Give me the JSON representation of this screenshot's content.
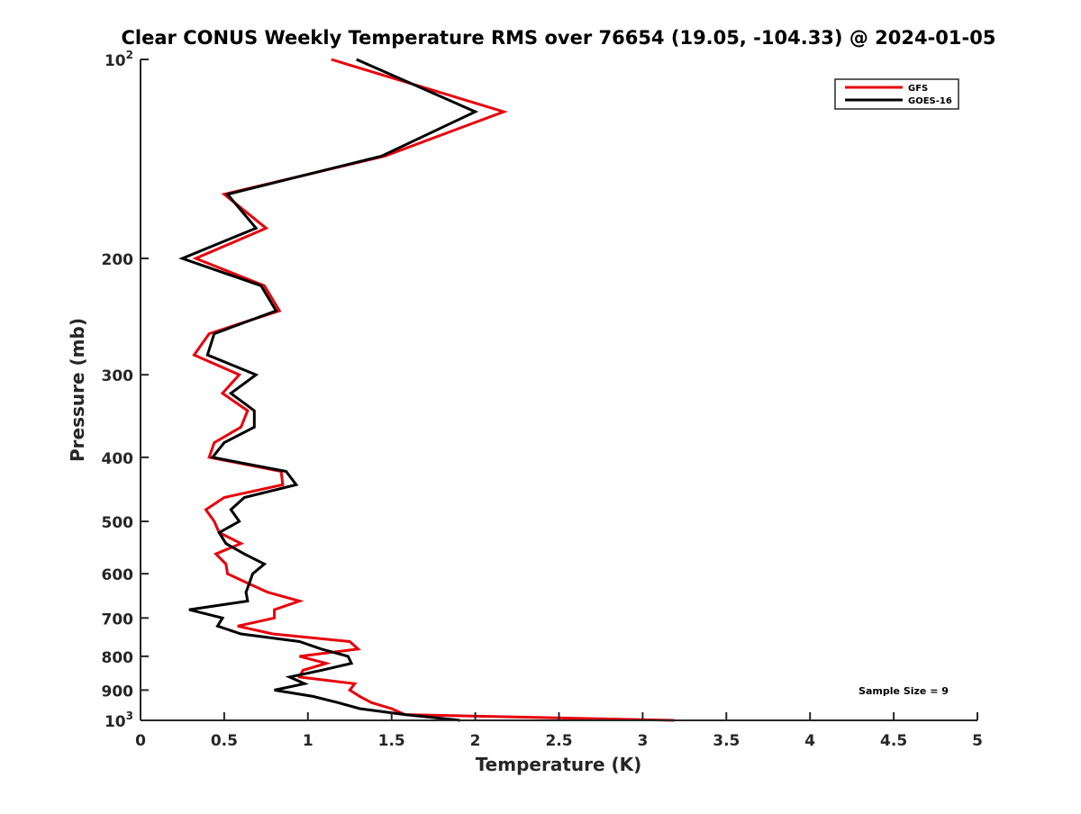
{
  "chart_data": {
    "type": "line",
    "title": "Clear CONUS Weekly Temperature RMS over 76654 (19.05, -104.33) @ 2024-01-05",
    "xlabel": "Temperature (K)",
    "ylabel": "Pressure (mb)",
    "xlim": [
      0,
      5
    ],
    "ylim": [
      100,
      1000
    ],
    "yscale": "log",
    "y_reversed": true,
    "grid": false,
    "x_ticks": [
      "0",
      "0.5",
      "1",
      "1.5",
      "2",
      "2.5",
      "3",
      "3.5",
      "4",
      "4.5",
      "5"
    ],
    "x_tick_values": [
      0,
      0.5,
      1,
      1.5,
      2,
      2.5,
      3,
      3.5,
      4,
      4.5,
      5
    ],
    "y_ticks": [
      {
        "value": 100,
        "label": "10",
        "sup": "2"
      },
      {
        "value": 200,
        "label": "200"
      },
      {
        "value": 300,
        "label": "300"
      },
      {
        "value": 400,
        "label": "400"
      },
      {
        "value": 500,
        "label": "500"
      },
      {
        "value": 600,
        "label": "600"
      },
      {
        "value": 700,
        "label": "700"
      },
      {
        "value": 800,
        "label": "800"
      },
      {
        "value": 900,
        "label": "900"
      },
      {
        "value": 1000,
        "label": "10",
        "sup": "3"
      }
    ],
    "legend_position": "top-right",
    "pressure": [
      100,
      120,
      140,
      160,
      180,
      200,
      220,
      240,
      260,
      280,
      300,
      320,
      340,
      360,
      380,
      400,
      420,
      440,
      460,
      480,
      500,
      520,
      540,
      560,
      580,
      600,
      620,
      640,
      660,
      680,
      700,
      720,
      740,
      760,
      780,
      800,
      820,
      840,
      860,
      880,
      900,
      920,
      940,
      960,
      980,
      1000
    ],
    "series": [
      {
        "name": "GFS",
        "color": "#e8000b",
        "values": [
          1.14,
          2.17,
          1.46,
          0.5,
          0.75,
          0.33,
          0.74,
          0.83,
          0.41,
          0.32,
          0.59,
          0.49,
          0.64,
          0.6,
          0.44,
          0.41,
          0.84,
          0.85,
          0.5,
          0.39,
          0.44,
          0.47,
          0.6,
          0.45,
          0.51,
          0.52,
          0.64,
          0.76,
          0.95,
          0.8,
          0.8,
          0.58,
          0.79,
          1.25,
          1.3,
          0.95,
          1.11,
          0.97,
          0.95,
          1.28,
          1.25,
          1.31,
          1.38,
          1.5,
          1.58,
          3.19
        ]
      },
      {
        "name": "GOES-16",
        "color": "#000000",
        "values": [
          1.29,
          2.0,
          1.44,
          0.52,
          0.69,
          0.25,
          0.72,
          0.81,
          0.44,
          0.4,
          0.69,
          0.54,
          0.68,
          0.68,
          0.5,
          0.43,
          0.87,
          0.93,
          0.62,
          0.54,
          0.59,
          0.47,
          0.51,
          0.62,
          0.74,
          0.67,
          0.65,
          0.63,
          0.64,
          0.29,
          0.49,
          0.46,
          0.6,
          0.95,
          1.08,
          1.24,
          1.26,
          1.08,
          0.89,
          0.98,
          0.8,
          1.03,
          1.18,
          1.31,
          1.58,
          1.91
        ]
      }
    ],
    "annotations": [
      "Sample Size = 9"
    ]
  }
}
